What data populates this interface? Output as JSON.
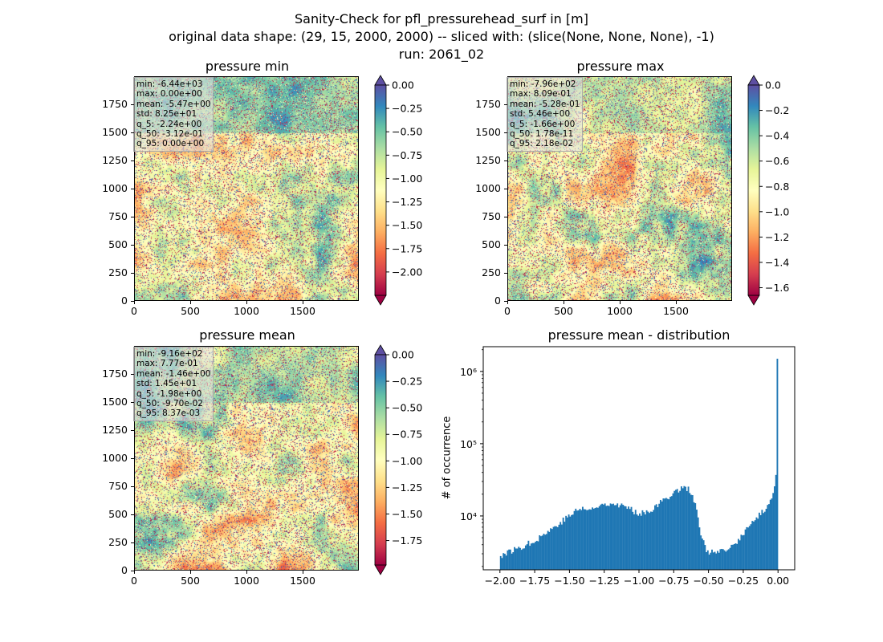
{
  "figure": {
    "suptitle_lines": [
      "Sanity-Check for pfl_pressurehead_surf in [m]",
      "original data shape: (29, 15, 2000, 2000) -- sliced with: (slice(None, None, None), -1)",
      "run: 2061_02"
    ]
  },
  "chart_data": [
    {
      "type": "heatmap",
      "title": "pressure min",
      "xticks": [
        "0",
        "500",
        "1000",
        "1500"
      ],
      "yticks": [
        "0",
        "250",
        "500",
        "750",
        "1000",
        "1250",
        "1500",
        "1750"
      ],
      "xlim": [
        0,
        2000
      ],
      "ylim": [
        0,
        2000
      ],
      "colormap": "Spectral",
      "colorbar": {
        "range": [
          -2.25,
          0.0
        ],
        "ticks": [
          "0.00",
          "-0.25",
          "-0.50",
          "-0.75",
          "-1.00",
          "-1.25",
          "-1.50",
          "-1.75",
          "-2.00"
        ],
        "extend": "both",
        "extend_top_color": "#5e4fa2",
        "extend_bottom_color": "#9e0142"
      },
      "stats": [
        "min: -6.44e+03",
        "max: 0.00e+00",
        "mean: -5.47e+00",
        "std: 8.25e+01",
        "q_5: -2.24e+00",
        "q_50: -3.12e-01",
        "q_95: 0.00e+00"
      ],
      "texture": {
        "bias": 0.55,
        "seed": 11
      }
    },
    {
      "type": "heatmap",
      "title": "pressure max",
      "xticks": [
        "0",
        "500",
        "1000",
        "1500"
      ],
      "yticks": [
        "0",
        "250",
        "500",
        "750",
        "1000",
        "1250",
        "1500",
        "1750"
      ],
      "xlim": [
        0,
        2000
      ],
      "ylim": [
        0,
        2000
      ],
      "colormap": "Spectral",
      "colorbar": {
        "range": [
          -1.66,
          0.0
        ],
        "ticks": [
          "0.0",
          "-0.2",
          "-0.4",
          "-0.6",
          "-0.8",
          "-1.0",
          "-1.2",
          "-1.4",
          "-1.6"
        ],
        "extend": "both",
        "extend_top_color": "#5e4fa2",
        "extend_bottom_color": "#9e0142"
      },
      "stats": [
        "min: -7.96e+02",
        "max: 8.09e-01",
        "mean: -5.28e-01",
        "std: 5.46e+00",
        "q_5: -1.66e+00",
        "q_50: 1.78e-11",
        "q_95: 2.18e-02"
      ],
      "texture": {
        "bias": 0.35,
        "seed": 23
      }
    },
    {
      "type": "heatmap",
      "title": "pressure mean",
      "xticks": [
        "0",
        "500",
        "1000",
        "1500"
      ],
      "yticks": [
        "0",
        "250",
        "500",
        "750",
        "1000",
        "1250",
        "1500",
        "1750"
      ],
      "xlim": [
        0,
        2000
      ],
      "ylim": [
        0,
        2000
      ],
      "colormap": "Spectral",
      "colorbar": {
        "range": [
          -1.98,
          0.0
        ],
        "ticks": [
          "0.00",
          "-0.25",
          "-0.50",
          "-0.75",
          "-1.00",
          "-1.25",
          "-1.50",
          "-1.75"
        ],
        "extend": "both",
        "extend_top_color": "#5e4fa2",
        "extend_bottom_color": "#9e0142"
      },
      "stats": [
        "min: -9.16e+02",
        "max: 7.77e-01",
        "mean: -1.46e+00",
        "std: 1.45e+01",
        "q_5: -1.98e+00",
        "q_50: -9.70e-02",
        "q_95: 8.37e-03"
      ],
      "texture": {
        "bias": 0.4,
        "seed": 37
      }
    },
    {
      "type": "bar",
      "title": "pressure mean - distribution",
      "ylabel": "# of occurrence",
      "xlabel": "",
      "yscale": "log",
      "xlim": [
        -2.12,
        0.12
      ],
      "ylim": [
        1800,
        2200000
      ],
      "xticks": [
        -2.0,
        -1.75,
        -1.5,
        -1.25,
        -1.0,
        -0.75,
        -0.5,
        -0.25,
        0.0
      ],
      "xtick_labels": [
        "−2.00",
        "−1.75",
        "−1.50",
        "−1.25",
        "−1.00",
        "−0.75",
        "−0.50",
        "−0.25",
        "0.00"
      ],
      "yticks": [
        10000,
        100000,
        1000000
      ],
      "ytick_labels": [
        "10⁴",
        "10⁵",
        "10⁶"
      ],
      "bar_color": "#1f77b4",
      "bin_range": [
        -2.0,
        0.0
      ],
      "anchors": [
        [
          -2.0,
          2800
        ],
        [
          -1.95,
          3100
        ],
        [
          -1.9,
          3400
        ],
        [
          -1.85,
          3700
        ],
        [
          -1.8,
          4100
        ],
        [
          -1.75,
          4600
        ],
        [
          -1.7,
          5300
        ],
        [
          -1.65,
          6200
        ],
        [
          -1.6,
          7200
        ],
        [
          -1.55,
          8600
        ],
        [
          -1.5,
          10000
        ],
        [
          -1.45,
          12000
        ],
        [
          -1.4,
          12800
        ],
        [
          -1.35,
          12000
        ],
        [
          -1.3,
          13200
        ],
        [
          -1.25,
          15000
        ],
        [
          -1.2,
          15200
        ],
        [
          -1.15,
          14500
        ],
        [
          -1.1,
          13500
        ],
        [
          -1.05,
          12000
        ],
        [
          -1.0,
          11000
        ],
        [
          -0.95,
          11500
        ],
        [
          -0.9,
          12500
        ],
        [
          -0.85,
          15000
        ],
        [
          -0.8,
          18000
        ],
        [
          -0.75,
          21000
        ],
        [
          -0.7,
          24000
        ],
        [
          -0.67,
          26000
        ],
        [
          -0.64,
          23000
        ],
        [
          -0.6,
          16000
        ],
        [
          -0.57,
          8000
        ],
        [
          -0.55,
          5000
        ],
        [
          -0.52,
          3600
        ],
        [
          -0.5,
          3200
        ],
        [
          -0.45,
          3100
        ],
        [
          -0.4,
          3200
        ],
        [
          -0.35,
          3500
        ],
        [
          -0.3,
          4200
        ],
        [
          -0.25,
          5800
        ],
        [
          -0.2,
          7500
        ],
        [
          -0.15,
          9500
        ],
        [
          -0.1,
          12000
        ],
        [
          -0.05,
          17000
        ],
        [
          -0.02,
          26000
        ],
        [
          -0.01,
          50000
        ],
        [
          0.0,
          1500000
        ]
      ]
    }
  ]
}
